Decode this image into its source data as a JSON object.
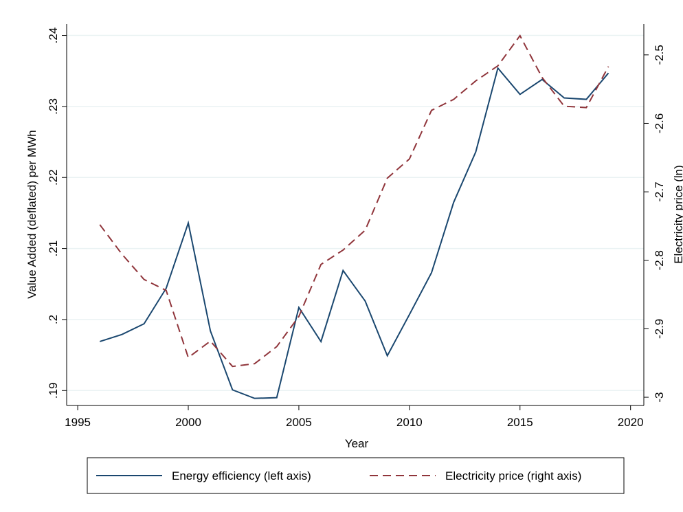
{
  "chart_data": {
    "type": "line",
    "xlabel": "Year",
    "ylabel": "Value Added (deflated) per MWh",
    "y2label": "Electricity price (ln)",
    "x": [
      1996,
      1997,
      1998,
      1999,
      2000,
      2001,
      2002,
      2003,
      2004,
      2005,
      2006,
      2007,
      2008,
      2009,
      2010,
      2011,
      2012,
      2013,
      2014,
      2015,
      2016,
      2017,
      2018,
      2019
    ],
    "series": [
      {
        "name": "Energy efficiency (left axis)",
        "color": "#1a476f",
        "dash": false,
        "values": [
          0.1969,
          0.1979,
          0.1994,
          0.2044,
          0.2136,
          0.1984,
          0.1901,
          0.1889,
          0.189,
          0.2017,
          0.1969,
          0.2069,
          0.2026,
          0.1949,
          0.2007,
          0.2066,
          0.2165,
          0.2236,
          0.2354,
          0.2317,
          0.2338,
          0.2312,
          0.231,
          0.2347
        ]
      },
      {
        "name": "Electricity price (right axis)",
        "color": "#90353b",
        "dash": true,
        "axis": "y2",
        "values": [
          -2.748,
          -2.791,
          -2.828,
          -2.844,
          -2.942,
          -2.918,
          -2.955,
          -2.951,
          -2.926,
          -2.882,
          -2.806,
          -2.785,
          -2.756,
          -2.68,
          -2.652,
          -2.581,
          -2.565,
          -2.538,
          -2.516,
          -2.472,
          -2.533,
          -2.575,
          -2.577,
          -2.517
        ]
      }
    ],
    "xlim": [
      1994.5,
      2020.6
    ],
    "xticks": [
      1995,
      2000,
      2005,
      2010,
      2015,
      2020
    ],
    "ylim": [
      0.1879,
      0.2416
    ],
    "yticks": [
      {
        "value": 0.19,
        "label": ".19"
      },
      {
        "value": 0.2,
        "label": ".2"
      },
      {
        "value": 0.21,
        "label": ".21"
      },
      {
        "value": 0.22,
        "label": ".22"
      },
      {
        "value": 0.23,
        "label": ".23"
      },
      {
        "value": 0.24,
        "label": ".24"
      }
    ],
    "y2lim": [
      -3.012,
      -2.455
    ],
    "y2ticks": [
      -3,
      -2.9,
      -2.8,
      -2.7,
      -2.6,
      -2.5
    ],
    "grid": true,
    "legend": "bottom"
  }
}
